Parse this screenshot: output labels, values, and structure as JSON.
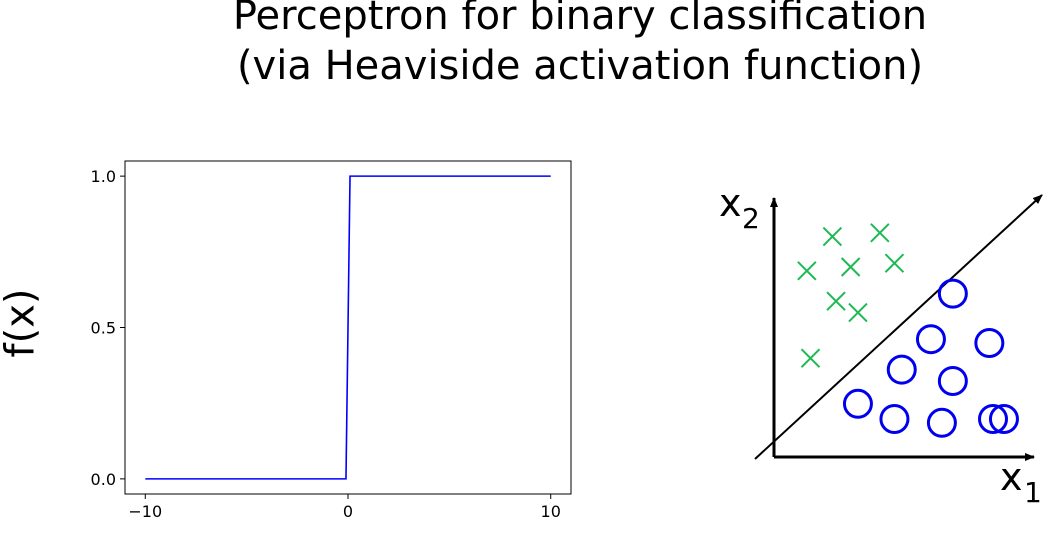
{
  "title_line1": "Perceptron for binary classification",
  "title_line2": "(via Heaviside activation function)",
  "chart_data": [
    {
      "type": "line",
      "title": "",
      "xlabel": "",
      "ylabel": "f(x)",
      "xlim": [
        -11,
        11
      ],
      "ylim": [
        -0.05,
        1.05
      ],
      "xticks": [
        "−10",
        "0",
        "10"
      ],
      "xtick_values": [
        -10,
        0,
        10
      ],
      "yticks": [
        "0.0",
        "0.5",
        "1.0"
      ],
      "ytick_values": [
        0,
        0.5,
        1
      ],
      "grid": false,
      "series": [
        {
          "color": "#0000ff",
          "x": [
            -10,
            -0.1,
            0.1,
            10
          ],
          "y": [
            0,
            0,
            1,
            1
          ]
        }
      ]
    },
    {
      "type": "scatter",
      "xlabel": "x",
      "xlabel_sub": "1",
      "ylabel": "x",
      "ylabel_sub": "2",
      "series": [
        {
          "marker": "cross",
          "color": "#1db954",
          "x": [
            0.9,
            1.6,
            2.1,
            2.9,
            3.3,
            1.7,
            2.3,
            1.0
          ],
          "y": [
            4.9,
            5.8,
            5.0,
            5.9,
            5.1,
            4.1,
            3.8,
            2.6
          ]
        },
        {
          "marker": "circle",
          "color": "#0000ee",
          "x": [
            4.9,
            4.3,
            5.9,
            3.5,
            4.9,
            6.0,
            4.6,
            2.3,
            3.3,
            6.3
          ],
          "y": [
            4.3,
            3.1,
            3.0,
            2.3,
            2.0,
            1.0,
            0.9,
            1.4,
            1.0,
            1.0
          ]
        }
      ],
      "decision_boundary": {
        "color": "#000000"
      }
    }
  ]
}
